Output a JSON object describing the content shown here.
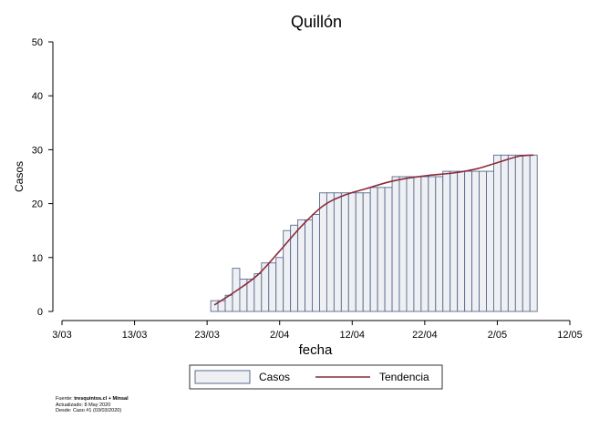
{
  "chart_data": {
    "type": "bar",
    "title": "Quillón",
    "xlabel": "fecha",
    "ylabel": "Casos",
    "ylim": [
      0,
      50
    ],
    "xlim": [
      "2020-03-03",
      "2020-05-12"
    ],
    "yticks": [
      0,
      10,
      20,
      30,
      40,
      50
    ],
    "xticks": [
      {
        "date": "2020-03-03",
        "label": "3/03"
      },
      {
        "date": "2020-03-13",
        "label": "13/03"
      },
      {
        "date": "2020-03-23",
        "label": "23/03"
      },
      {
        "date": "2020-04-02",
        "label": "2/04"
      },
      {
        "date": "2020-04-12",
        "label": "12/04"
      },
      {
        "date": "2020-04-22",
        "label": "22/04"
      },
      {
        "date": "2020-05-02",
        "label": "2/05"
      },
      {
        "date": "2020-05-12",
        "label": "12/05"
      }
    ],
    "grid": false,
    "legend_position": "bottom",
    "series": [
      {
        "name": "Casos",
        "kind": "bar",
        "color": "#eef0f4",
        "edge_color": "#5a6b8c",
        "dates": [
          "2020-03-24",
          "2020-03-25",
          "2020-03-26",
          "2020-03-27",
          "2020-03-28",
          "2020-03-29",
          "2020-03-30",
          "2020-03-31",
          "2020-04-01",
          "2020-04-02",
          "2020-04-03",
          "2020-04-04",
          "2020-04-05",
          "2020-04-06",
          "2020-04-07",
          "2020-04-08",
          "2020-04-09",
          "2020-04-10",
          "2020-04-11",
          "2020-04-12",
          "2020-04-13",
          "2020-04-14",
          "2020-04-15",
          "2020-04-16",
          "2020-04-17",
          "2020-04-18",
          "2020-04-19",
          "2020-04-20",
          "2020-04-21",
          "2020-04-22",
          "2020-04-23",
          "2020-04-24",
          "2020-04-25",
          "2020-04-26",
          "2020-04-27",
          "2020-04-28",
          "2020-04-29",
          "2020-04-30",
          "2020-05-01",
          "2020-05-02",
          "2020-05-03",
          "2020-05-04",
          "2020-05-05",
          "2020-05-06",
          "2020-05-07"
        ],
        "values": [
          2,
          2,
          3,
          8,
          6,
          6,
          7,
          9,
          9,
          10,
          15,
          16,
          17,
          17,
          18,
          22,
          22,
          22,
          22,
          22,
          22,
          22,
          23,
          23,
          23,
          25,
          25,
          25,
          25,
          25,
          25,
          25,
          26,
          26,
          26,
          26,
          26,
          26,
          26,
          29,
          29,
          29,
          29,
          29,
          29
        ]
      },
      {
        "name": "Tendencia",
        "kind": "line",
        "color": "#8b2a3a",
        "dates": [
          "2020-03-24",
          "2020-03-27",
          "2020-03-30",
          "2020-04-02",
          "2020-04-05",
          "2020-04-08",
          "2020-04-11",
          "2020-04-14",
          "2020-04-17",
          "2020-04-20",
          "2020-04-23",
          "2020-04-26",
          "2020-04-29",
          "2020-05-02",
          "2020-05-05",
          "2020-05-07"
        ],
        "values": [
          1.2,
          3.8,
          6.8,
          11.2,
          15.8,
          19.6,
          21.6,
          22.8,
          24.0,
          24.8,
          25.3,
          25.7,
          26.4,
          27.6,
          28.8,
          29.0
        ]
      }
    ]
  },
  "legend": {
    "items": [
      {
        "label": "Casos"
      },
      {
        "label": "Tendencia"
      }
    ]
  },
  "footer": {
    "source_label": "Fuente:",
    "source_value": "tresquintos.cl + Minsal",
    "updated": "Actualizado: 8 May 2020",
    "since": "Desde: Caso #1  (03/03/2020)"
  }
}
